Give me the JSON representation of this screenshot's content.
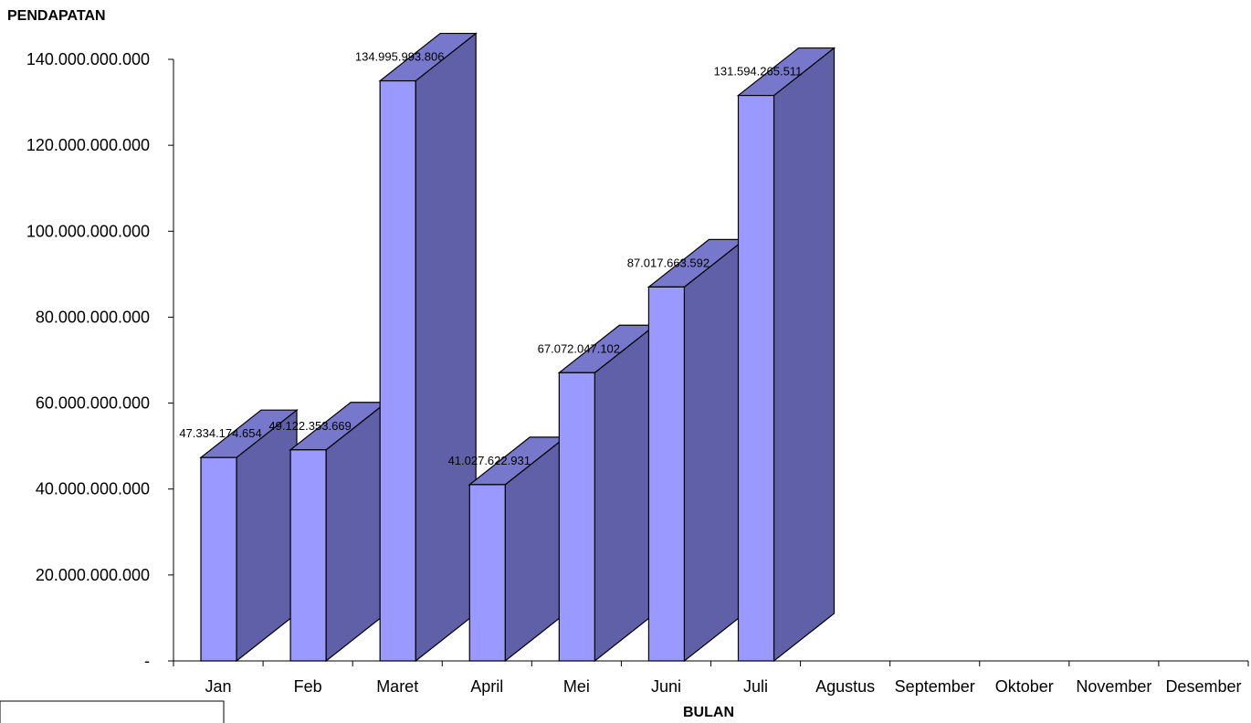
{
  "chart_data": {
    "type": "bar",
    "title": "",
    "ylabel": "PENDAPATAN",
    "xlabel": "BULAN",
    "categories": [
      "Jan",
      "Feb",
      "Maret",
      "April",
      "Mei",
      "Juni",
      "Juli",
      "Agustus",
      "September",
      "Oktober",
      "November",
      "Desember"
    ],
    "values": [
      47334174654,
      49122353669,
      134995993806,
      41027622931,
      67072047102,
      87017663592,
      131594265511,
      null,
      null,
      null,
      null,
      null
    ],
    "value_labels": [
      "47.334.174.654",
      "49.122.353.669",
      "134.995.993.806",
      "41.027.622.931",
      "67.072.047.102",
      "87.017.663.592",
      "131.594.265.511",
      "",
      "",
      "",
      "",
      ""
    ],
    "ylim": [
      0,
      140000000000
    ],
    "yticks": [
      0,
      20000000000,
      40000000000,
      60000000000,
      80000000000,
      100000000000,
      120000000000,
      140000000000
    ],
    "ytick_labels": [
      "-",
      "20.000.000.000",
      "40.000.000.000",
      "60.000.000.000",
      "80.000.000.000",
      "100.000.000.000",
      "120.000.000.000",
      "140.000.000.000"
    ],
    "grid": false,
    "legend": "none",
    "style": "3d-column",
    "colors": {
      "front": "#9999ff",
      "side": "#6060a8",
      "top": "#7777cc",
      "stroke": "#000000"
    }
  }
}
